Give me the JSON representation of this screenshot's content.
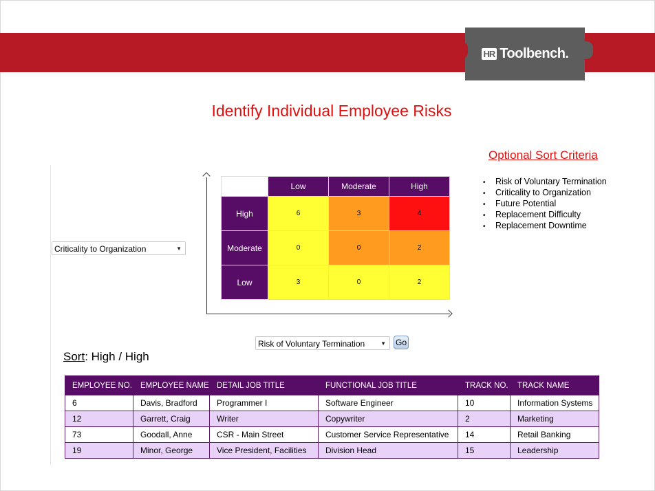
{
  "header": {
    "logo_mark": "HR",
    "logo_text": "Toolbench.",
    "title": "Identify Individual Employee Risks"
  },
  "optional_sort": {
    "title": "Optional Sort Criteria",
    "items": [
      "Risk of Voluntary Termination",
      "Criticality to Organization",
      "Future Potential",
      "Replacement Difficulty",
      "Replacement Downtime"
    ]
  },
  "y_select": {
    "value": "Criticality to Organization"
  },
  "x_select": {
    "value": "Risk of Voluntary Termination"
  },
  "go_button": {
    "label": "Go"
  },
  "matrix": {
    "columns": [
      "Low",
      "Moderate",
      "High"
    ],
    "rows": [
      {
        "label": "High",
        "values": [
          "6",
          "3",
          "4"
        ]
      },
      {
        "label": "Moderate",
        "values": [
          "0",
          "0",
          "2"
        ]
      },
      {
        "label": "Low",
        "values": [
          "3",
          "0",
          "2"
        ]
      }
    ],
    "colors": {
      "yellow": "#ffff33",
      "orange": "#ff9b1f",
      "red": "#ff1010",
      "header": "#570c66"
    }
  },
  "sort": {
    "label": "Sort",
    "value": ": High / High"
  },
  "employees": {
    "headers": [
      "EMPLOYEE NO.",
      "EMPLOYEE NAME",
      "DETAIL JOB TITLE",
      "FUNCTIONAL JOB TITLE",
      "TRACK NO.",
      "TRACK NAME"
    ],
    "rows": [
      [
        "6",
        "Davis, Bradford",
        "Programmer I",
        "Software Engineer",
        "10",
        "Information Systems"
      ],
      [
        "12",
        "Garrett, Craig",
        "Writer",
        "Copywriter",
        "2",
        "Marketing"
      ],
      [
        "73",
        "Goodall, Anne",
        "CSR - Main Street",
        "Customer Service Representative",
        "14",
        "Retail Banking"
      ],
      [
        "19",
        "Minor, George",
        "Vice President, Facilities",
        "Division Head",
        "15",
        "Leadership"
      ]
    ]
  },
  "brand_colors": {
    "band": "#b71a24",
    "title": "#e0100f",
    "purple": "#570c66",
    "row_alt": "#e9d2f7"
  }
}
